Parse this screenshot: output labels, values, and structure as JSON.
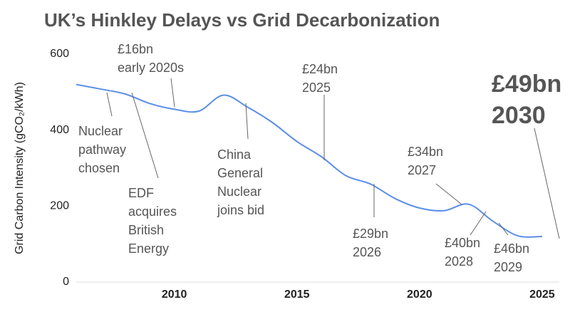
{
  "chart_data": {
    "type": "line",
    "title": "UK’s Hinkley Delays vs Grid Decarbonization",
    "y_label": "Grid Carbon Intensity (gCO₂/kWh)",
    "x": [
      2006,
      2007,
      2008,
      2009,
      2010,
      2011,
      2012,
      2013,
      2014,
      2015,
      2016,
      2017,
      2018,
      2019,
      2020,
      2021,
      2022,
      2023,
      2024,
      2025
    ],
    "series": [
      {
        "name": "Grid Carbon Intensity",
        "color": "#5b8ee6",
        "values": [
          520,
          508,
          495,
          470,
          455,
          450,
          492,
          460,
          420,
          370,
          330,
          280,
          258,
          220,
          195,
          188,
          205,
          160,
          122,
          120
        ]
      }
    ],
    "xlim": [
      2006,
      2025.7
    ],
    "xticks": [
      2010,
      2015,
      2020,
      2025
    ],
    "ylim": [
      0,
      600
    ],
    "yticks": [
      0,
      200,
      400,
      600
    ],
    "annotations": [
      {
        "lines": [
          "Nuclear",
          "pathway",
          "chosen"
        ]
      },
      {
        "lines": [
          "EDF",
          "acquires",
          "British",
          "Energy"
        ]
      },
      {
        "lines": [
          "£16bn",
          "early 2020s"
        ]
      },
      {
        "lines": [
          "China",
          "General",
          "Nuclear",
          "joins bid"
        ]
      },
      {
        "lines": [
          "£24bn",
          "2025"
        ]
      },
      {
        "lines": [
          "£29bn",
          "2026"
        ]
      },
      {
        "lines": [
          "£34bn",
          "2027"
        ]
      },
      {
        "lines": [
          "£40bn",
          "2028"
        ]
      },
      {
        "lines": [
          "£46bn",
          "2029"
        ]
      },
      {
        "lines": [
          "£49bn",
          "2030"
        ]
      }
    ]
  }
}
